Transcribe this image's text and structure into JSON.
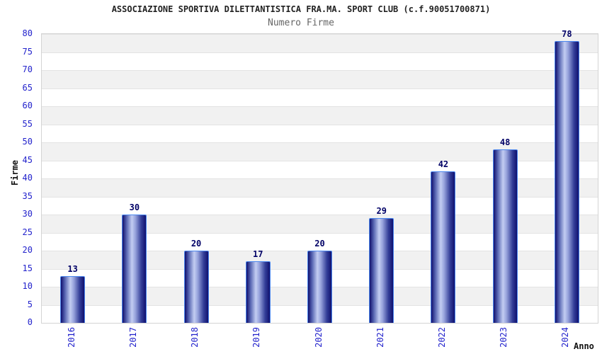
{
  "page": {
    "background": "#ffffff"
  },
  "chart_data": {
    "type": "bar",
    "title": "ASSOCIAZIONE SPORTIVA DILETTANTISTICA FRA.MA. SPORT CLUB (c.f.90051700871)",
    "subtitle": "Numero Firme",
    "xlabel": "Anno",
    "ylabel": "Firme",
    "categories": [
      "2016",
      "2017",
      "2018",
      "2019",
      "2020",
      "2021",
      "2022",
      "2023",
      "2024"
    ],
    "values": [
      13,
      30,
      20,
      17,
      20,
      29,
      42,
      48,
      78
    ],
    "ylim": [
      0,
      80
    ],
    "ytick_step": 5,
    "grid": "horizontal gridlines every 5 units with alternating white/light-gray bands",
    "legend": "none",
    "value_labels_shown": true,
    "colors": {
      "background": "#ffffff",
      "title": "#222222",
      "subtitle": "#666666",
      "axis_label": "#111111",
      "tick_label": "#2222cc",
      "value_label": "#000066",
      "bar_border": "#4a86ee",
      "bar_dark": "#10106e",
      "bar_light": "#c3cdf2",
      "band_gray": "#f1f1f1",
      "gridline": "#e3e3e3",
      "plot_border": "#d4d4d4"
    }
  }
}
